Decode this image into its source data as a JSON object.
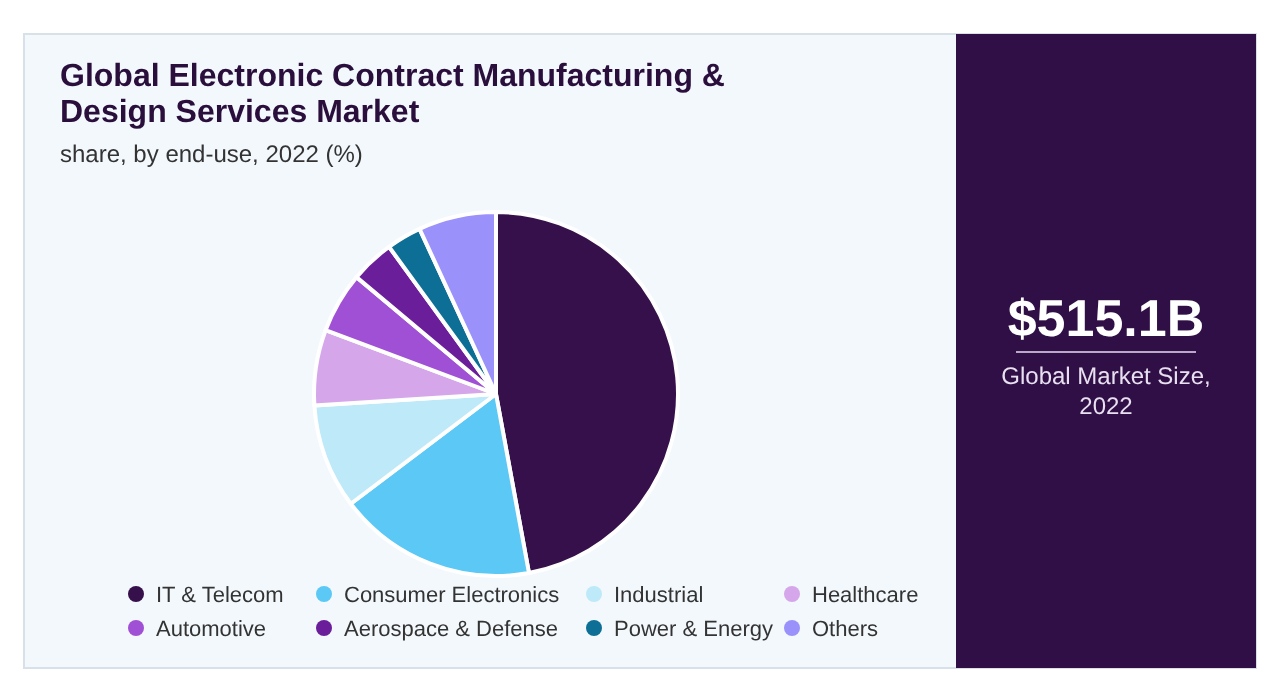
{
  "chart_data": {
    "type": "pie",
    "title": "Global Electronic Contract Manufacturing & Design Services Market",
    "subtitle": "share, by end-use, 2022 (%)",
    "categories": [
      "IT & Telecom",
      "Consumer Electronics",
      "Industrial",
      "Healthcare",
      "Automotive",
      "Aerospace & Defense",
      "Power & Energy",
      "Others"
    ],
    "values": [
      47.1,
      17.6,
      9.3,
      6.7,
      5.4,
      3.9,
      3.1,
      6.9
    ],
    "colors": [
      "#36104a",
      "#5bc8f5",
      "#bde9f9",
      "#d5a6ea",
      "#a050d4",
      "#6a1e9a",
      "#0d6f96",
      "#9b91fb"
    ],
    "legend": "bottom",
    "annotations": [
      "$515.1B",
      "Global Market Size, 2022"
    ]
  }
}
